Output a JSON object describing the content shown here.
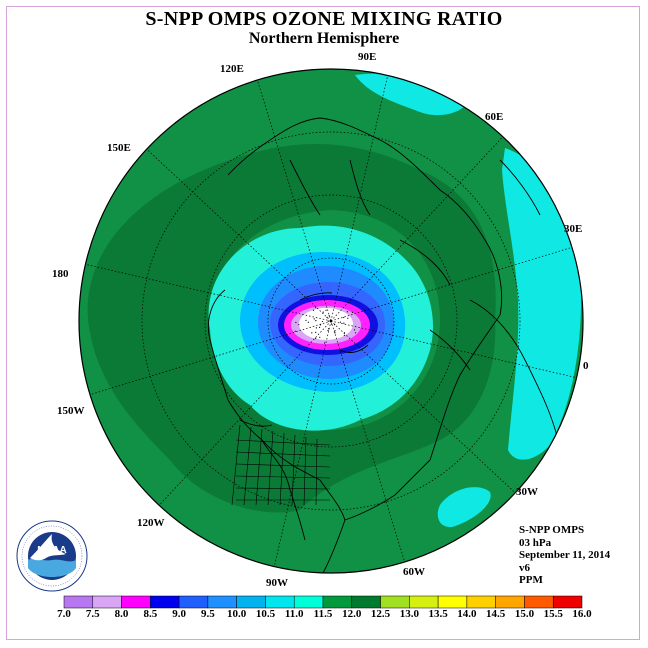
{
  "title": "S-NPP OMPS OZONE MIXING RATIO",
  "subtitle": "Northern Hemisphere",
  "longitude_labels": [
    "90E",
    "60E",
    "30E",
    "0",
    "30W",
    "60W",
    "90W",
    "120W",
    "150W",
    "180",
    "150E",
    "120E"
  ],
  "info": {
    "instrument": "S-NPP OMPS",
    "pressure": "03 hPa",
    "date": "September 11, 2014",
    "version": "v6",
    "units": "PPM"
  },
  "logo_text": "NOAA",
  "logo_ring_text": "NATIONAL OCEANIC AND ATMOSPHERIC ADMINISTRATION · U.S. DEPARTMENT OF COMMERCE",
  "colorbar": {
    "labels": [
      "7.0",
      "7.5",
      "8.0",
      "8.5",
      "9.0",
      "9.5",
      "10.0",
      "10.5",
      "11.0",
      "11.5",
      "12.0",
      "12.5",
      "13.0",
      "13.5",
      "14.0",
      "14.5",
      "15.0",
      "15.5",
      "16.0"
    ],
    "colors": [
      "#b777f0",
      "#d9a6f5",
      "#ff00ff",
      "#0000ee",
      "#1f5fff",
      "#1e90ff",
      "#00b2ee",
      "#00e5ee",
      "#00ffd9",
      "#009a3c",
      "#007a2c",
      "#a0e020",
      "#d5f010",
      "#ffff00",
      "#ffd000",
      "#ffa500",
      "#ff5a00",
      "#ee0000",
      "#8b5a2b"
    ]
  },
  "map_colors": {
    "outer": "#119145",
    "dark": "#0b7a37",
    "cyan": "#22f0d8",
    "light_cyan": "#10e8e4",
    "blue1": "#00bfff",
    "blue2": "#1e8cff",
    "blue3": "#3466ff",
    "navy": "#1010e0",
    "magenta": "#ff22ff",
    "lavender": "#d9a6f5",
    "center": "#ffffff"
  }
}
